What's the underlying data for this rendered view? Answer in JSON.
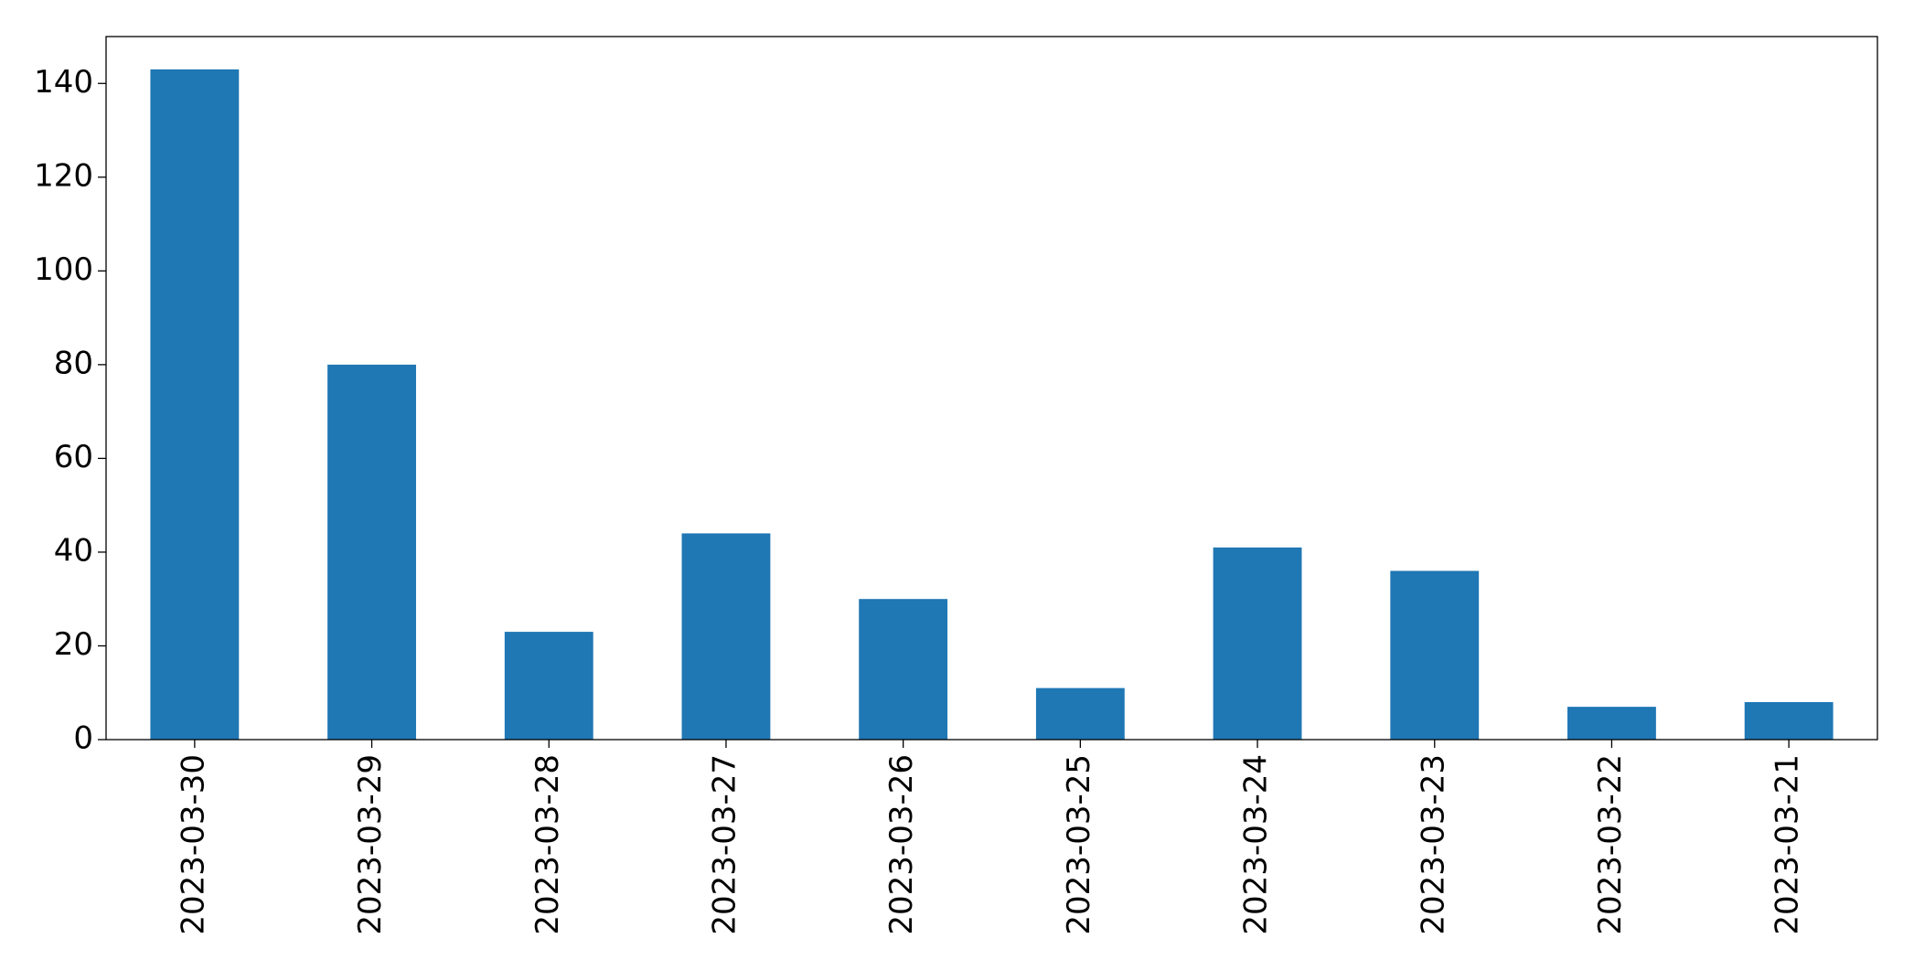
{
  "chart_data": {
    "type": "bar",
    "categories": [
      "2023-03-30",
      "2023-03-29",
      "2023-03-28",
      "2023-03-27",
      "2023-03-26",
      "2023-03-25",
      "2023-03-24",
      "2023-03-23",
      "2023-03-22",
      "2023-03-21"
    ],
    "values": [
      143,
      80,
      23,
      44,
      30,
      11,
      41,
      36,
      7,
      8
    ],
    "color": "#1f77b4",
    "ylim": [
      0,
      150
    ],
    "yticks": [
      0,
      20,
      40,
      60,
      80,
      100,
      120,
      140
    ],
    "grid": false
  }
}
